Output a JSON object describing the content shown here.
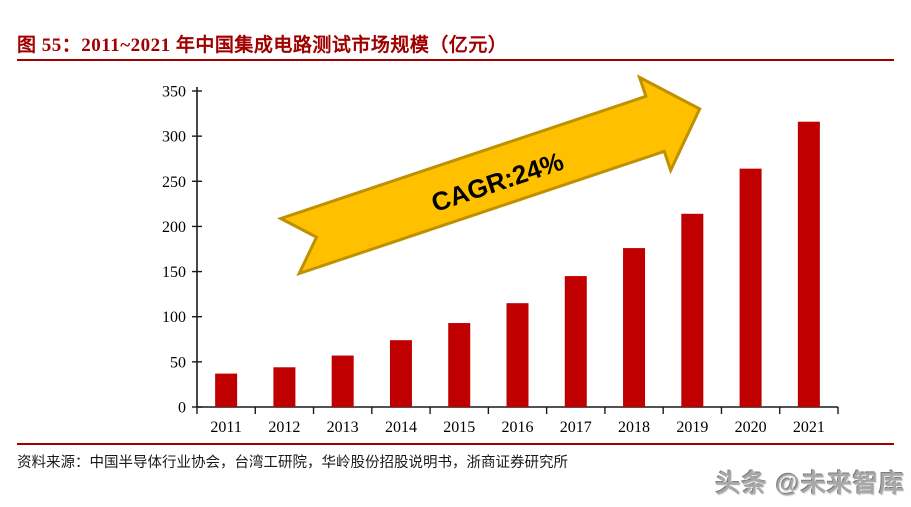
{
  "header": {
    "figure_label": "图 55：",
    "title": "2011~2021 年中国集成电路测试市场规模（亿元）"
  },
  "chart_data": {
    "type": "bar",
    "title": "2011~2021 年中国集成电路测试市场规模（亿元）",
    "categories": [
      "2011",
      "2012",
      "2013",
      "2014",
      "2015",
      "2016",
      "2017",
      "2018",
      "2019",
      "2020",
      "2021"
    ],
    "values": [
      37,
      44,
      57,
      74,
      93,
      115,
      145,
      176,
      214,
      264,
      316
    ],
    "xlabel": "",
    "ylabel": "",
    "ylim": [
      0,
      350
    ],
    "ytick_step": 50,
    "grid": false,
    "legend": "none",
    "annotation": "CAGR:24%"
  },
  "colors": {
    "bar": "#C00000",
    "title_accent": "#A00000",
    "arrow_fill": "#FFC000",
    "arrow_stroke": "#BF9000",
    "axis": "#1a1a1a"
  },
  "footer": {
    "source_label": "资料来源：",
    "source_text": "中国半导体行业协会，台湾工研院，华岭股份招股说明书，浙商证券研究所",
    "watermark": "头条 @未来智库"
  }
}
